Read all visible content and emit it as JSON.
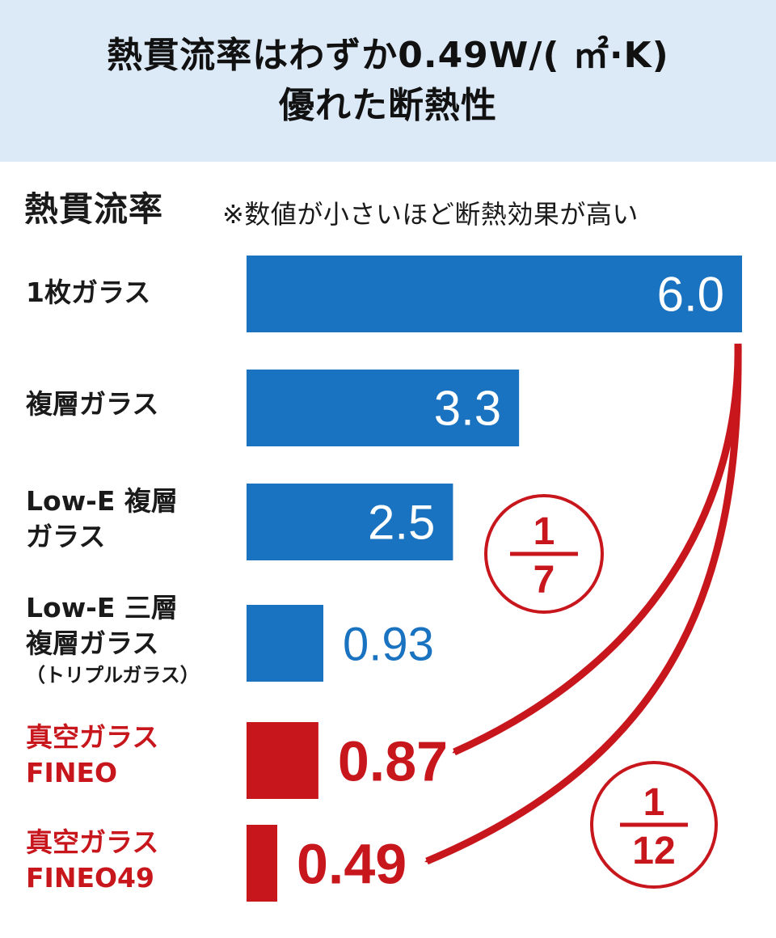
{
  "header": {
    "title_line1": "熱貫流率はわずか0.49W/( ㎡·K)",
    "title_line2": "優れた断熱性"
  },
  "colors": {
    "header_bg": "#dce9f7",
    "bar_blue": "#1a73c0",
    "bar_red": "#c8161d",
    "value_text_light": "#ffffff"
  },
  "chart_data": {
    "type": "bar",
    "orientation": "horizontal",
    "ylabel": "熱貫流率",
    "note": "※数値が小さいほど断熱効果が高い",
    "categories": [
      {
        "lines": [
          "1枚ガラス"
        ],
        "sub": "",
        "highlight": false
      },
      {
        "lines": [
          "複層ガラス"
        ],
        "sub": "",
        "highlight": false
      },
      {
        "lines": [
          "Low-E 複層",
          "ガラス"
        ],
        "sub": "",
        "highlight": false
      },
      {
        "lines": [
          "Low-E 三層",
          "複層ガラス"
        ],
        "sub": "（トリプルガラス）",
        "highlight": false
      },
      {
        "lines": [
          "真空ガラス",
          "FINEO"
        ],
        "sub": "",
        "highlight": true
      },
      {
        "lines": [
          "真空ガラス",
          "FINEO49"
        ],
        "sub": "",
        "highlight": true
      }
    ],
    "values": [
      6.0,
      3.3,
      2.5,
      0.93,
      0.87,
      0.49
    ],
    "value_labels": [
      "6.0",
      "3.3",
      "2.5",
      "0.93",
      "0.87",
      "0.49"
    ],
    "xlim": [
      0,
      6.0
    ],
    "annotations": [
      {
        "numerator": "1",
        "denominator": "7",
        "from": "6.0",
        "to": "0.87"
      },
      {
        "numerator": "1",
        "denominator": "12",
        "from": "6.0",
        "to": "0.49"
      }
    ]
  }
}
